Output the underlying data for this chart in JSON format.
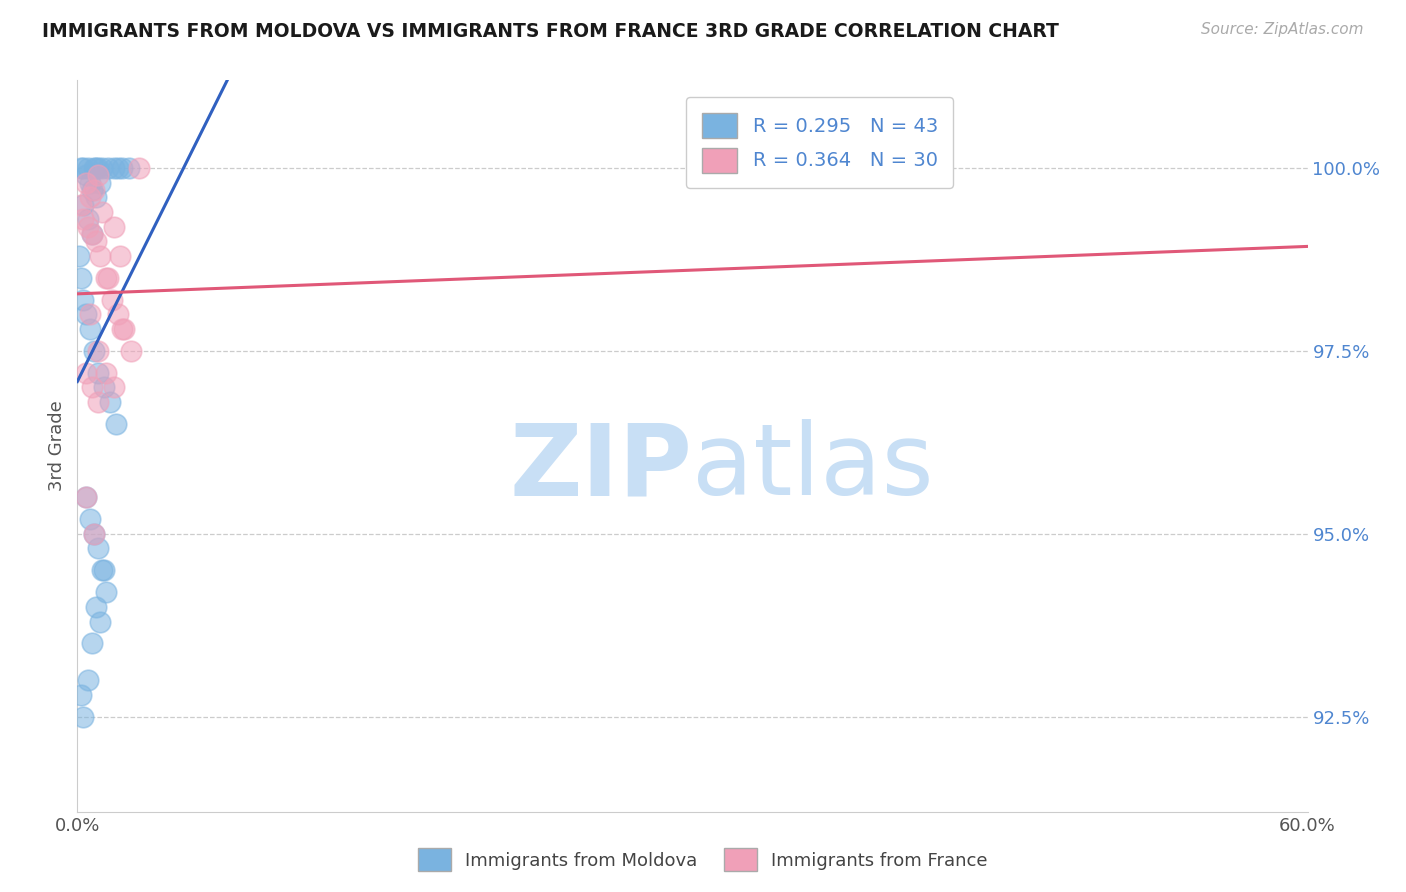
{
  "title": "IMMIGRANTS FROM MOLDOVA VS IMMIGRANTS FROM FRANCE 3RD GRADE CORRELATION CHART",
  "source": "Source: ZipAtlas.com",
  "xlabel_moldova": "Immigrants from Moldova",
  "xlabel_france": "Immigrants from France",
  "ylabel": "3rd Grade",
  "xlim": [
    0.0,
    60.0
  ],
  "ylim": [
    91.2,
    101.2
  ],
  "x_ticks": [
    0.0,
    60.0
  ],
  "x_tick_labels": [
    "0.0%",
    "60.0%"
  ],
  "y_ticks": [
    92.5,
    95.0,
    97.5,
    100.0
  ],
  "y_tick_labels": [
    "92.5%",
    "95.0%",
    "97.5%",
    "100.0%"
  ],
  "R_moldova": 0.295,
  "N_moldova": 43,
  "R_france": 0.364,
  "N_france": 30,
  "color_moldova": "#7ab3e0",
  "color_france": "#f0a0b8",
  "color_moldova_line": "#3060c0",
  "color_france_line": "#e05878",
  "color_tick_labels": "#4f86d0",
  "moldova_x": [
    0.3,
    0.5,
    0.8,
    1.0,
    1.2,
    0.2,
    0.4,
    0.6,
    0.7,
    0.9,
    1.5,
    1.8,
    2.0,
    2.2,
    2.5,
    0.3,
    0.5,
    0.7,
    0.9,
    1.1,
    0.1,
    0.2,
    0.3,
    0.4,
    0.6,
    0.8,
    1.0,
    1.3,
    1.6,
    1.9,
    0.4,
    0.6,
    0.8,
    1.0,
    1.2,
    1.4,
    0.2,
    0.3,
    0.5,
    0.7,
    0.9,
    1.1,
    1.3
  ],
  "moldova_y": [
    100.0,
    100.0,
    100.0,
    100.0,
    100.0,
    100.0,
    99.9,
    99.8,
    99.7,
    100.0,
    100.0,
    100.0,
    100.0,
    100.0,
    100.0,
    99.5,
    99.3,
    99.1,
    99.6,
    99.8,
    98.8,
    98.5,
    98.2,
    98.0,
    97.8,
    97.5,
    97.2,
    97.0,
    96.8,
    96.5,
    95.5,
    95.2,
    95.0,
    94.8,
    94.5,
    94.2,
    92.8,
    92.5,
    93.0,
    93.5,
    94.0,
    93.8,
    94.5
  ],
  "france_x": [
    0.2,
    0.4,
    0.6,
    0.8,
    1.0,
    1.2,
    0.3,
    0.5,
    0.7,
    0.9,
    1.1,
    1.4,
    1.7,
    2.0,
    2.3,
    2.6,
    3.0,
    1.5,
    1.8,
    2.1,
    0.4,
    0.7,
    1.0,
    0.6,
    1.0,
    1.4,
    1.8,
    2.2,
    0.4,
    0.8
  ],
  "france_y": [
    99.5,
    99.8,
    99.6,
    99.7,
    99.9,
    99.4,
    99.3,
    99.2,
    99.1,
    99.0,
    98.8,
    98.5,
    98.2,
    98.0,
    97.8,
    97.5,
    100.0,
    98.5,
    99.2,
    98.8,
    97.2,
    97.0,
    96.8,
    98.0,
    97.5,
    97.2,
    97.0,
    97.8,
    95.5,
    95.0
  ],
  "watermark_zip": "ZIP",
  "watermark_atlas": "atlas",
  "watermark_color_zip": "#c8dff5",
  "watermark_color_atlas": "#c8dff5",
  "background_color": "#ffffff",
  "grid_color": "#cccccc",
  "spine_color": "#cccccc"
}
